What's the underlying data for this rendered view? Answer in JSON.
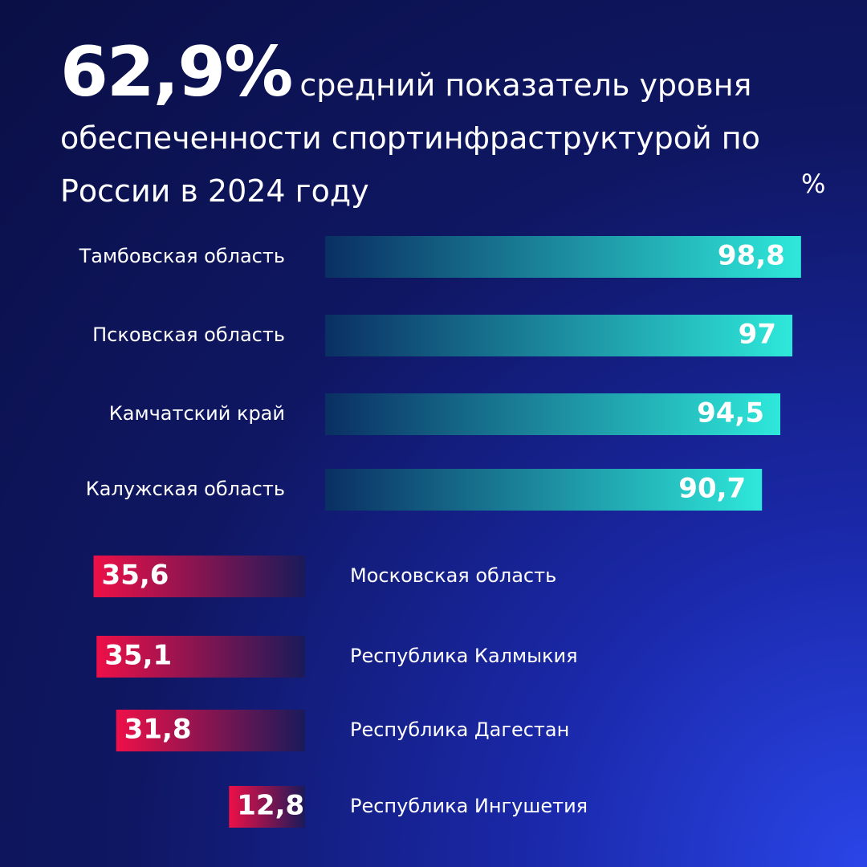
{
  "chart_data": [
    {
      "type": "bar",
      "direction": "right",
      "headline": "62,9%",
      "title": "средний показатель уровня обеспеченности спортинфраструктурой по России в 2024 году",
      "unit": "%",
      "categories": [
        "Тамбовская область",
        "Псковская область",
        "Камчатский край",
        "Калужская область"
      ],
      "values": [
        98.8,
        97,
        94.5,
        90.7
      ],
      "value_labels": [
        "98,8",
        "97",
        "94,5",
        "90,7"
      ],
      "colors": [
        "#0a2f63",
        "#2ee8da"
      ]
    },
    {
      "type": "bar",
      "direction": "left",
      "categories": [
        "Московская область",
        "Республика Калмыкия",
        "Республика Дагестан",
        "Республика Ингушетия"
      ],
      "values": [
        35.6,
        35.1,
        31.8,
        12.8
      ],
      "value_labels": [
        "35,6",
        "35,1",
        "31,8",
        "12,8"
      ],
      "colors": [
        "#ee1048",
        "#1a1a5a"
      ]
    }
  ]
}
